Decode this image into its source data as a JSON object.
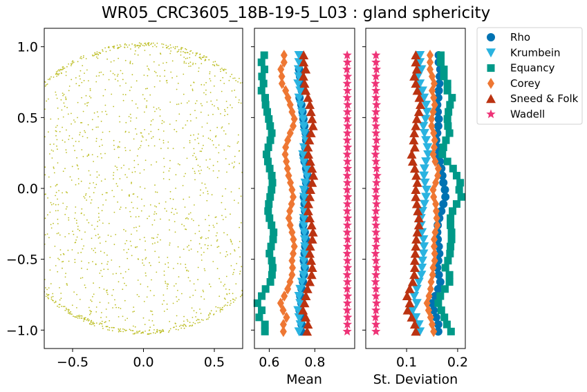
{
  "title": "WR05_CRC3605_18B-19-5_L03 : gland sphericity",
  "chart_data": [
    {
      "type": "scatter",
      "panel": "points",
      "xlim": [
        -0.7,
        0.7
      ],
      "ylim": [
        -1.13,
        1.13
      ],
      "xticks": [
        "−0.5",
        "0.0",
        "0.5"
      ],
      "xtick_values": [
        -0.5,
        0.0,
        0.5
      ],
      "yticks": [
        "1.0",
        "0.5",
        "0.0",
        "−0.5",
        "−1.0"
      ],
      "ytick_values": [
        1.0,
        0.5,
        0.0,
        -0.5,
        -1.0
      ],
      "color": "#bcbd22",
      "point_count": 2200
    },
    {
      "type": "line",
      "panel": "mean",
      "xlabel": "Mean",
      "xlim": [
        0.535,
        0.975
      ],
      "xticks": [
        "0.6",
        "0.8"
      ],
      "xtick_values": [
        0.6,
        0.8
      ],
      "y": [
        0.94,
        0.89,
        0.84,
        0.79,
        0.74,
        0.69,
        0.64,
        0.59,
        0.54,
        0.49,
        0.44,
        0.39,
        0.34,
        0.29,
        0.24,
        0.19,
        0.14,
        0.09,
        0.04,
        -0.01,
        -0.06,
        -0.11,
        -0.16,
        -0.21,
        -0.26,
        -0.31,
        -0.36,
        -0.41,
        -0.46,
        -0.51,
        -0.56,
        -0.61,
        -0.66,
        -0.71,
        -0.76,
        -0.81,
        -0.86,
        -0.91,
        -0.96,
        -1.01
      ],
      "series": [
        {
          "name": "Rho",
          "marker": "circle",
          "color": "#0072b2",
          "values": [
            0.741,
            0.741,
            0.731,
            0.735,
            0.742,
            0.743,
            0.733,
            0.741,
            0.746,
            0.75,
            0.754,
            0.76,
            0.762,
            0.758,
            0.75,
            0.755,
            0.762,
            0.768,
            0.762,
            0.758,
            0.752,
            0.755,
            0.757,
            0.752,
            0.749,
            0.756,
            0.76,
            0.758,
            0.755,
            0.752,
            0.756,
            0.752,
            0.748,
            0.742,
            0.736,
            0.741,
            0.733,
            0.74,
            0.742,
            0.74
          ]
        },
        {
          "name": "Krumbein",
          "marker": "triangle-down",
          "color": "#2ab3e0",
          "values": [
            0.731,
            0.731,
            0.729,
            0.73,
            0.727,
            0.736,
            0.731,
            0.738,
            0.744,
            0.749,
            0.752,
            0.755,
            0.762,
            0.753,
            0.748,
            0.752,
            0.763,
            0.766,
            0.758,
            0.752,
            0.753,
            0.757,
            0.754,
            0.752,
            0.752,
            0.754,
            0.756,
            0.757,
            0.756,
            0.752,
            0.756,
            0.751,
            0.744,
            0.736,
            0.731,
            0.736,
            0.727,
            0.731,
            0.737,
            0.731
          ]
        },
        {
          "name": "Equancy",
          "marker": "square",
          "color": "#009988",
          "values": [
            0.578,
            0.566,
            0.579,
            0.568,
            0.575,
            0.566,
            0.582,
            0.584,
            0.591,
            0.598,
            0.604,
            0.611,
            0.605,
            0.596,
            0.588,
            0.594,
            0.602,
            0.611,
            0.614,
            0.61,
            0.604,
            0.598,
            0.595,
            0.601,
            0.61,
            0.619,
            0.617,
            0.608,
            0.601,
            0.611,
            0.615,
            0.612,
            0.605,
            0.584,
            0.567,
            0.548,
            0.567,
            0.556,
            0.581,
            0.581
          ]
        },
        {
          "name": "Corey",
          "marker": "diamond",
          "color": "#ee7733",
          "values": [
            0.665,
            0.665,
            0.651,
            0.655,
            0.656,
            0.672,
            0.682,
            0.692,
            0.7,
            0.71,
            0.705,
            0.692,
            0.681,
            0.672,
            0.67,
            0.675,
            0.68,
            0.685,
            0.693,
            0.7,
            0.705,
            0.698,
            0.69,
            0.686,
            0.692,
            0.7,
            0.706,
            0.71,
            0.705,
            0.7,
            0.702,
            0.7,
            0.691,
            0.681,
            0.666,
            0.65,
            0.661,
            0.676,
            0.662,
            0.662
          ]
        },
        {
          "name": "Sneed & Folk",
          "marker": "triangle-up",
          "color": "#bb3311",
          "values": [
            0.751,
            0.751,
            0.76,
            0.75,
            0.755,
            0.76,
            0.77,
            0.778,
            0.783,
            0.788,
            0.792,
            0.783,
            0.776,
            0.77,
            0.772,
            0.78,
            0.788,
            0.794,
            0.788,
            0.781,
            0.778,
            0.772,
            0.771,
            0.778,
            0.786,
            0.792,
            0.789,
            0.78,
            0.778,
            0.784,
            0.789,
            0.786,
            0.778,
            0.768,
            0.761,
            0.755,
            0.748,
            0.76,
            0.77,
            0.766
          ]
        },
        {
          "name": "Wadell",
          "marker": "star",
          "color": "#ee3377",
          "values": [
            0.942,
            0.943,
            0.941,
            0.944,
            0.942,
            0.943,
            0.942,
            0.944,
            0.943,
            0.942,
            0.944,
            0.943,
            0.942,
            0.944,
            0.942,
            0.943,
            0.944,
            0.942,
            0.943,
            0.942,
            0.944,
            0.943,
            0.942,
            0.944,
            0.943,
            0.942,
            0.944,
            0.943,
            0.942,
            0.943,
            0.944,
            0.942,
            0.943,
            0.942,
            0.944,
            0.943,
            0.942,
            0.944,
            0.943,
            0.942
          ]
        }
      ]
    },
    {
      "type": "line",
      "panel": "std",
      "xlabel": "St. Deviation",
      "xlim": [
        0.02,
        0.215
      ],
      "xticks": [
        "0.1",
        "0.2"
      ],
      "xtick_values": [
        0.1,
        0.2
      ],
      "y": [
        0.94,
        0.89,
        0.84,
        0.79,
        0.74,
        0.69,
        0.64,
        0.59,
        0.54,
        0.49,
        0.44,
        0.39,
        0.34,
        0.29,
        0.24,
        0.19,
        0.14,
        0.09,
        0.04,
        -0.01,
        -0.06,
        -0.11,
        -0.16,
        -0.21,
        -0.26,
        -0.31,
        -0.36,
        -0.41,
        -0.46,
        -0.51,
        -0.56,
        -0.61,
        -0.66,
        -0.71,
        -0.76,
        -0.81,
        -0.86,
        -0.91,
        -0.96,
        -1.01
      ],
      "series": [
        {
          "name": "Rho",
          "marker": "circle",
          "color": "#0072b2",
          "values": [
            0.163,
            0.163,
            0.166,
            0.165,
            0.164,
            0.163,
            0.162,
            0.16,
            0.161,
            0.163,
            0.162,
            0.16,
            0.158,
            0.16,
            0.162,
            0.165,
            0.168,
            0.17,
            0.172,
            0.175,
            0.176,
            0.172,
            0.168,
            0.164,
            0.161,
            0.16,
            0.161,
            0.163,
            0.164,
            0.162,
            0.16,
            0.163,
            0.166,
            0.162,
            0.156,
            0.15,
            0.153,
            0.158,
            0.162,
            0.162
          ]
        },
        {
          "name": "Krumbein",
          "marker": "triangle-down",
          "color": "#2ab3e0",
          "values": [
            0.126,
            0.126,
            0.129,
            0.122,
            0.126,
            0.131,
            0.134,
            0.138,
            0.14,
            0.137,
            0.133,
            0.135,
            0.138,
            0.141,
            0.142,
            0.138,
            0.135,
            0.134,
            0.136,
            0.139,
            0.138,
            0.135,
            0.131,
            0.128,
            0.128,
            0.13,
            0.133,
            0.134,
            0.133,
            0.131,
            0.13,
            0.129,
            0.124,
            0.12,
            0.115,
            0.12,
            0.112,
            0.118,
            0.124,
            0.126
          ]
        },
        {
          "name": "Equancy",
          "marker": "square",
          "color": "#009988",
          "values": [
            0.167,
            0.167,
            0.173,
            0.173,
            0.18,
            0.18,
            0.189,
            0.185,
            0.182,
            0.18,
            0.181,
            0.184,
            0.177,
            0.172,
            0.17,
            0.18,
            0.191,
            0.198,
            0.205,
            0.203,
            0.207,
            0.198,
            0.19,
            0.186,
            0.186,
            0.188,
            0.188,
            0.186,
            0.185,
            0.181,
            0.176,
            0.184,
            0.184,
            0.175,
            0.166,
            0.162,
            0.168,
            0.174,
            0.179,
            0.187
          ]
        },
        {
          "name": "Corey",
          "marker": "diamond",
          "color": "#ee7733",
          "values": [
            0.146,
            0.146,
            0.146,
            0.15,
            0.154,
            0.15,
            0.153,
            0.155,
            0.152,
            0.149,
            0.149,
            0.153,
            0.155,
            0.154,
            0.152,
            0.156,
            0.162,
            0.161,
            0.157,
            0.152,
            0.153,
            0.157,
            0.158,
            0.159,
            0.16,
            0.156,
            0.154,
            0.154,
            0.155,
            0.155,
            0.152,
            0.151,
            0.148,
            0.147,
            0.144,
            0.14,
            0.143,
            0.147,
            0.15,
            0.153
          ]
        },
        {
          "name": "Sneed & Folk",
          "marker": "triangle-up",
          "color": "#bb3311",
          "values": [
            0.118,
            0.118,
            0.12,
            0.115,
            0.118,
            0.121,
            0.125,
            0.127,
            0.124,
            0.12,
            0.118,
            0.115,
            0.114,
            0.116,
            0.11,
            0.112,
            0.116,
            0.119,
            0.121,
            0.118,
            0.118,
            0.12,
            0.122,
            0.124,
            0.124,
            0.121,
            0.119,
            0.118,
            0.117,
            0.116,
            0.116,
            0.115,
            0.112,
            0.106,
            0.101,
            0.106,
            0.102,
            0.11,
            0.116,
            0.118
          ]
        },
        {
          "name": "Wadell",
          "marker": "star",
          "color": "#ee3377",
          "values": [
            0.04,
            0.04,
            0.041,
            0.04,
            0.039,
            0.04,
            0.04,
            0.041,
            0.04,
            0.039,
            0.04,
            0.04,
            0.041,
            0.04,
            0.039,
            0.04,
            0.041,
            0.042,
            0.041,
            0.04,
            0.04,
            0.041,
            0.04,
            0.039,
            0.04,
            0.04,
            0.041,
            0.04,
            0.039,
            0.04,
            0.041,
            0.04,
            0.039,
            0.04,
            0.04,
            0.041,
            0.04,
            0.039,
            0.04,
            0.04
          ]
        }
      ]
    }
  ],
  "legend": {
    "placement": "right",
    "entries": [
      "Rho",
      "Krumbein",
      "Equancy",
      "Corey",
      "Sneed & Folk",
      "Wadell"
    ]
  }
}
